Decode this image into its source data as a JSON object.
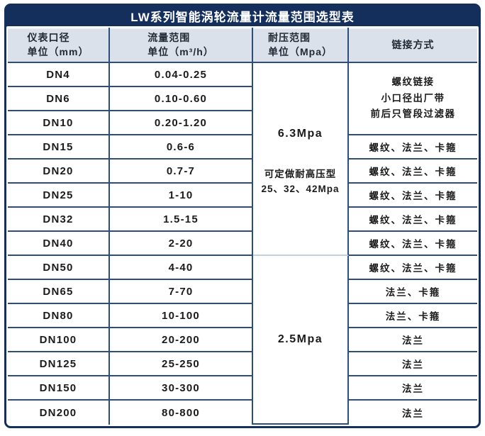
{
  "title": "LW系列智能涡轮流量计流量范围选型表",
  "colors": {
    "frame_navy": "#142f5c",
    "grid_navy": "#2d4d7d",
    "grid_light": "#c3d0e0",
    "header_bg": "#dbe1ea",
    "title_text": "#ffffff",
    "cell_text": "#1b1b1b"
  },
  "table": {
    "headers": [
      {
        "line1": "仪表口径",
        "line2": "单位（mm）"
      },
      {
        "line1": "流量范围",
        "line2": "单位（m³/h）"
      },
      {
        "line1": "耐压范围",
        "line2": "单位（Mpa）"
      },
      {
        "line1": "链接方式",
        "line2": ""
      }
    ],
    "pressure": {
      "high": {
        "value": "6.3Mpa",
        "note_line1": "可定做耐高压型",
        "note_line2": "25、32、42Mpa"
      },
      "low": {
        "value": "2.5Mpa"
      }
    },
    "small_bore_connection": {
      "line1": "螺纹链接",
      "line2": "小口径出厂带",
      "line3": "前后只管段过滤器"
    },
    "rows": [
      {
        "dn": "DN4",
        "flow": "0.04-0.25",
        "conn": ""
      },
      {
        "dn": "DN6",
        "flow": "0.10-0.60",
        "conn": ""
      },
      {
        "dn": "DN10",
        "flow": "0.20-1.20",
        "conn": ""
      },
      {
        "dn": "DN15",
        "flow": "0.6-6",
        "conn": "螺纹、法兰、卡箍"
      },
      {
        "dn": "DN20",
        "flow": "0.7-7",
        "conn": "螺纹、法兰、卡箍"
      },
      {
        "dn": "DN25",
        "flow": "1-10",
        "conn": "螺纹、法兰、卡箍"
      },
      {
        "dn": "DN32",
        "flow": "1.5-15",
        "conn": "螺纹、法兰、卡箍"
      },
      {
        "dn": "DN40",
        "flow": "2-20",
        "conn": "螺纹、法兰、卡箍"
      },
      {
        "dn": "DN50",
        "flow": "4-40",
        "conn": "螺纹、法兰、卡箍"
      },
      {
        "dn": "DN65",
        "flow": "7-70",
        "conn": "法兰、卡箍"
      },
      {
        "dn": "DN80",
        "flow": "10-100",
        "conn": "法兰、卡箍"
      },
      {
        "dn": "DN100",
        "flow": "20-200",
        "conn": "法兰"
      },
      {
        "dn": "DN125",
        "flow": "25-250",
        "conn": "法兰"
      },
      {
        "dn": "DN150",
        "flow": "30-300",
        "conn": "法兰"
      },
      {
        "dn": "DN200",
        "flow": "80-800",
        "conn": "法兰"
      }
    ]
  }
}
